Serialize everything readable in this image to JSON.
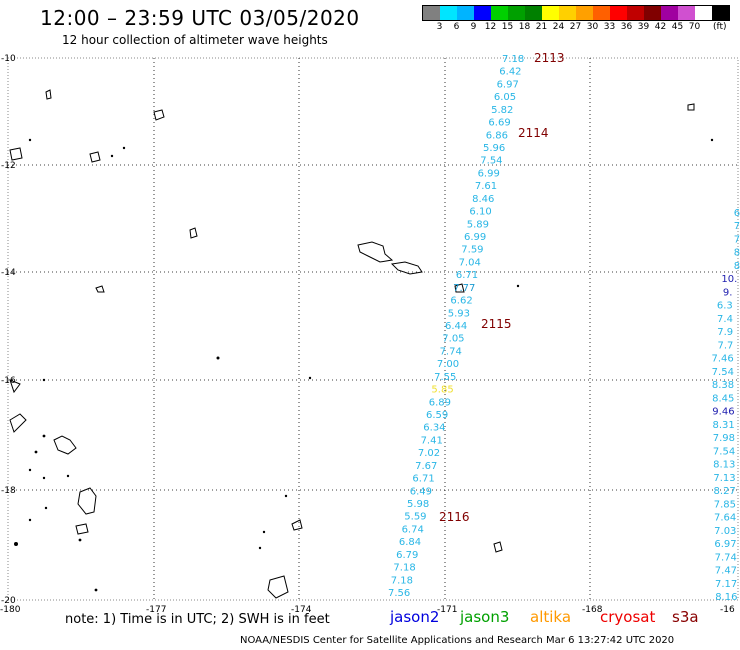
{
  "header": {
    "title": "12:00 – 23:59 UTC 03/05/2020",
    "subtitle": "12 hour collection of altimeter wave heights"
  },
  "colorbar": {
    "colors": [
      "#808080",
      "#00e5ff",
      "#00b4ff",
      "#0000ff",
      "#00d000",
      "#00a000",
      "#008000",
      "#ffff00",
      "#ffd000",
      "#ffa000",
      "#ff6000",
      "#ff0000",
      "#c00000",
      "#800000",
      "#a000a0",
      "#d050d0",
      "#ffffff",
      "#000000"
    ],
    "labels": [
      "3",
      "6",
      "9",
      "12",
      "15",
      "18",
      "21",
      "24",
      "27",
      "30",
      "33",
      "36",
      "39",
      "42",
      "45",
      "70"
    ],
    "unit": "(ft)"
  },
  "map": {
    "lat_ticks": [
      "-10",
      "-12",
      "-14",
      "-16",
      "-18",
      "-20"
    ],
    "lon_ticks": [
      "-180",
      "-177",
      "-174",
      "-171",
      "-168",
      "-16"
    ]
  },
  "tracks": {
    "labels": [
      "2113",
      "2114",
      "2115",
      "2116"
    ],
    "main_values": [
      "7.18",
      "6.42",
      "6.97",
      "6.05",
      "5.82",
      "6.69",
      "6.86",
      "5.96",
      "7.54",
      "6.99",
      "7.61",
      "8.46",
      "6.10",
      "5.89",
      "6.99",
      "7.59",
      "7.04",
      "6.71",
      "7.77",
      "6.62",
      "5.93",
      "6.44",
      "7.05",
      "7.74",
      "7.00",
      "7.55",
      "5.85",
      "6.89",
      "6.59",
      "6.34",
      "7.41",
      "7.02",
      "7.67",
      "6.71",
      "6.49",
      "5.98",
      "5.59",
      "6.74",
      "6.84",
      "6.79",
      "7.18",
      "7.18",
      "7.56"
    ],
    "right_values": [
      "6",
      "7",
      "7",
      "8",
      "8",
      "10.",
      "9.",
      "6.3",
      "7.4",
      "7.9",
      "7.7",
      "7.46",
      "7.54",
      "8.38",
      "8.45",
      "9.46",
      "8.31",
      "7.98",
      "7.54",
      "8.13",
      "7.13",
      "8.27",
      "7.85",
      "7.64",
      "7.03",
      "6.97",
      "7.74",
      "7.47",
      "7.17",
      "8.16"
    ]
  },
  "note": "note: 1) Time is in UTC; 2) SWH is in feet",
  "legend": {
    "jason2": "jason2",
    "jason3": "jason3",
    "altika": "altika",
    "cryosat": "cryosat",
    "s3a": "s3a"
  },
  "credit": "NOAA/NESDIS Center for Satellite Applications and Research    Mar  6 13:27:42 UTC 2020"
}
